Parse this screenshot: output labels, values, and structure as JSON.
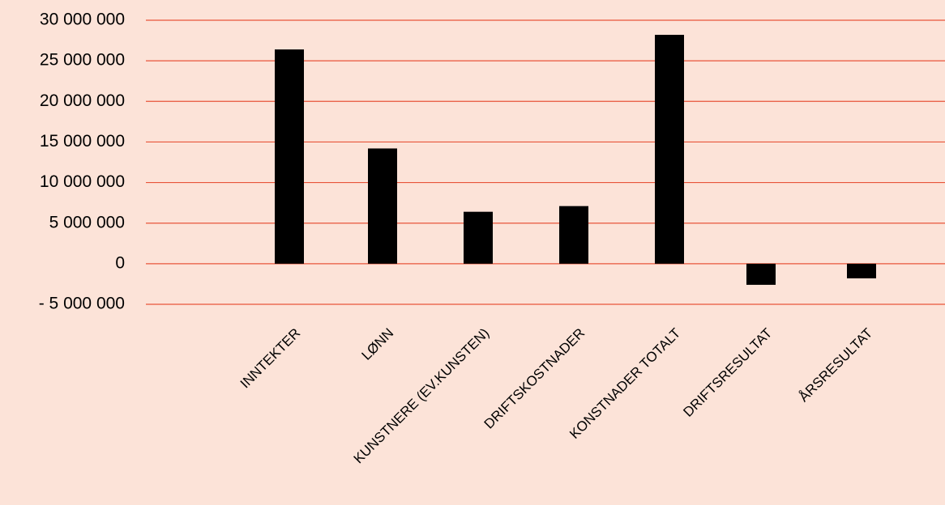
{
  "chart_data": {
    "type": "bar",
    "categories": [
      "INNTEKTER",
      "LØNN",
      "KUNSTNERE (EV.KUNSTEN)",
      "DRIFTSKOSTNADER",
      "KONSTNADER TOTALT",
      "DRIFTSRESULTAT",
      "ÅRSRESULTAT"
    ],
    "values": [
      26400000,
      14200000,
      6400000,
      7100000,
      28200000,
      -2600000,
      -1800000
    ],
    "ylim": [
      -5000000,
      30000000
    ],
    "yticks": [
      -5000000,
      0,
      5000000,
      10000000,
      15000000,
      20000000,
      25000000,
      30000000
    ],
    "ytick_labels": [
      "- 5 000 000",
      "0",
      "5 000 000",
      "10 000 000",
      "15 000 000",
      "20 000 000",
      "25 000 000",
      "30 000 000"
    ],
    "title": "",
    "xlabel": "",
    "ylabel": "",
    "grid": true,
    "legend": "none",
    "colors": {
      "background": "#fce3d8",
      "bar": "#000000",
      "gridline": "#e8543a"
    }
  }
}
